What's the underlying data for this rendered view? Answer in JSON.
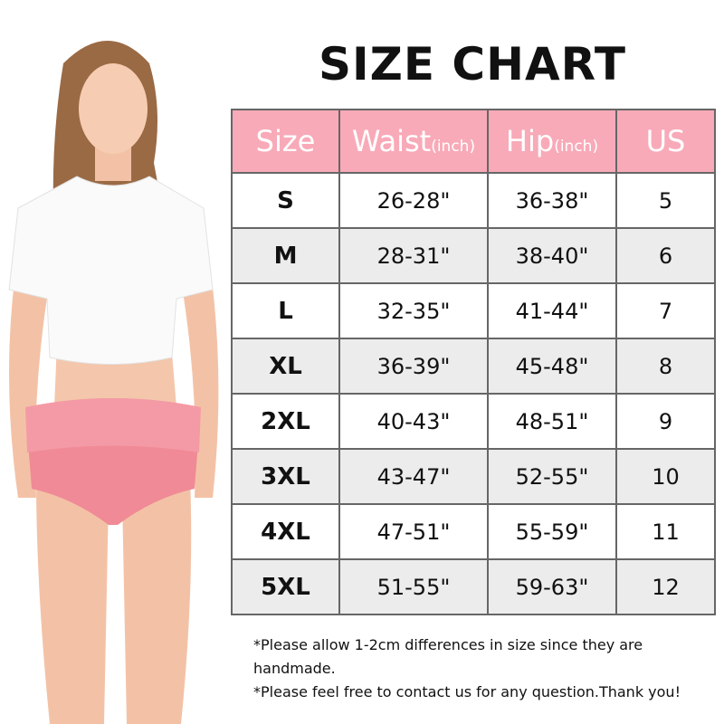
{
  "title": "SIZE CHART",
  "colors": {
    "header": "#f8aab8",
    "alt_row": "#ececec",
    "garment": "#f08a96"
  },
  "table": {
    "headers": [
      {
        "label": "Size",
        "unit": ""
      },
      {
        "label": "Waist",
        "unit": "(inch)"
      },
      {
        "label": "Hip",
        "unit": "(inch)"
      },
      {
        "label": "US",
        "unit": ""
      }
    ],
    "rows": [
      [
        "S",
        "26-28\"",
        "36-38\"",
        "5"
      ],
      [
        "M",
        "28-31\"",
        "38-40\"",
        "6"
      ],
      [
        "L",
        "32-35\"",
        "41-44\"",
        "7"
      ],
      [
        "XL",
        "36-39\"",
        "45-48\"",
        "8"
      ],
      [
        "2XL",
        "40-43\"",
        "48-51\"",
        "9"
      ],
      [
        "3XL",
        "43-47\"",
        "52-55\"",
        "10"
      ],
      [
        "4XL",
        "47-51\"",
        "55-59\"",
        "11"
      ],
      [
        "5XL",
        "51-55\"",
        "59-63\"",
        "12"
      ]
    ]
  },
  "notes": [
    "*Please allow 1-2cm differences in size since they are handmade.",
    "*Please feel free to contact us for any question.Thank you!"
  ]
}
